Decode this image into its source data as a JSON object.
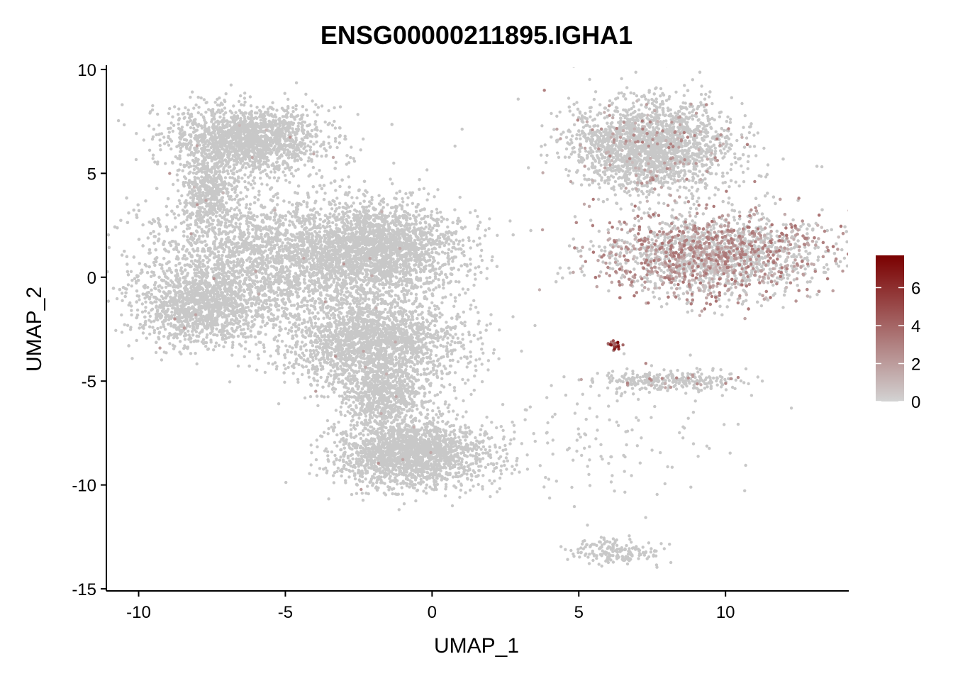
{
  "chart_data": {
    "type": "scatter",
    "title": "ENSG00000211895.IGHA1",
    "xlabel": "UMAP_1",
    "ylabel": "UMAP_2",
    "xlim": [
      -11.1,
      14.2
    ],
    "ylim": [
      -15.1,
      10.1
    ],
    "xticks": [
      -10,
      -5,
      0,
      5,
      10
    ],
    "yticks": [
      10,
      5,
      0,
      -5,
      -10,
      -15
    ],
    "xtick_labels": [
      "-10",
      "-5",
      "0",
      "5",
      "10"
    ],
    "ytick_labels": [
      "10",
      "5",
      "0",
      "-5",
      "-10",
      "-15"
    ],
    "grid": false,
    "legend": {
      "placement": "right",
      "min": 0,
      "max": 7.7,
      "ticks": [
        0,
        2,
        4,
        6
      ],
      "tick_labels": [
        "0",
        "2",
        "4",
        "6"
      ],
      "low_color": "#d3d3d3",
      "high_color": "#7a0000"
    },
    "point_color_base": "#c8c8c8",
    "clusters": [
      {
        "name": "upper-left-arm",
        "cx": -6.3,
        "cy": 6.6,
        "sx": 1.4,
        "sy": 0.9,
        "n": 1800
      },
      {
        "name": "upper-left-stalk",
        "cx": -7.6,
        "cy": 4.0,
        "sx": 0.5,
        "sy": 1.0,
        "n": 500
      },
      {
        "name": "left-main-body",
        "cx": -5.5,
        "cy": 0.8,
        "sx": 2.4,
        "sy": 1.7,
        "n": 5200
      },
      {
        "name": "left-main-right",
        "cx": -1.8,
        "cy": 1.3,
        "sx": 1.5,
        "sy": 1.3,
        "n": 2600
      },
      {
        "name": "left-main-lower",
        "cx": -7.8,
        "cy": -1.5,
        "sx": 1.2,
        "sy": 1.0,
        "n": 1200
      },
      {
        "name": "left-middle-lobe",
        "cx": -2.0,
        "cy": -3.2,
        "sx": 1.6,
        "sy": 1.2,
        "n": 2200
      },
      {
        "name": "left-neck",
        "cx": -1.6,
        "cy": -5.8,
        "sx": 0.8,
        "sy": 0.8,
        "n": 700
      },
      {
        "name": "left-bottom-lobe",
        "cx": -0.7,
        "cy": -8.5,
        "sx": 1.4,
        "sy": 0.9,
        "n": 2000
      },
      {
        "name": "right-upper-blob",
        "cx": 7.5,
        "cy": 6.3,
        "sx": 1.5,
        "sy": 1.2,
        "n": 2600
      },
      {
        "name": "right-plasma-cells",
        "cx": 9.5,
        "cy": 1.1,
        "sx": 2.1,
        "sy": 1.1,
        "n": 3600
      },
      {
        "name": "small-island-bottom",
        "cx": 6.2,
        "cy": -13.2,
        "sx": 0.9,
        "sy": 0.35,
        "n": 180
      },
      {
        "name": "right-streak",
        "cx": 8.0,
        "cy": -5.0,
        "sx": 1.4,
        "sy": 0.25,
        "n": 280
      },
      {
        "name": "tiny-cluster-center",
        "cx": 6.2,
        "cy": -3.3,
        "sx": 0.15,
        "sy": 0.12,
        "n": 25
      },
      {
        "name": "sparse-scatter",
        "cx": 6.0,
        "cy": -7.5,
        "sx": 2.3,
        "sy": 1.8,
        "n": 140
      }
    ],
    "high_expression_clusters": [
      "right-plasma-cells",
      "right-upper-blob",
      "tiny-cluster-center",
      "right-streak"
    ]
  }
}
